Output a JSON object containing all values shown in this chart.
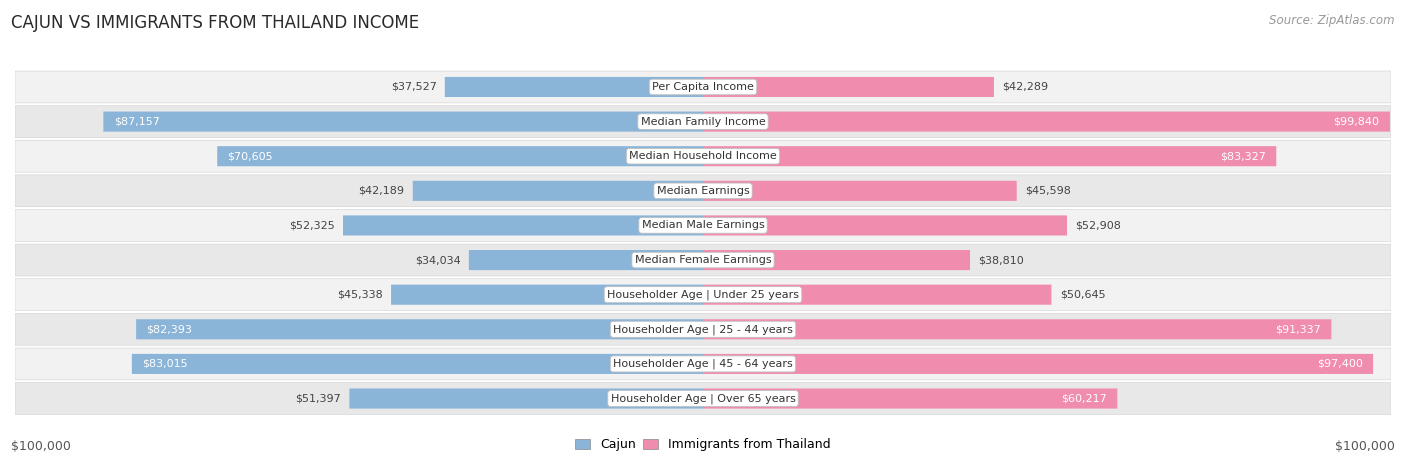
{
  "title": "CAJUN VS IMMIGRANTS FROM THAILAND INCOME",
  "source": "Source: ZipAtlas.com",
  "categories": [
    "Per Capita Income",
    "Median Family Income",
    "Median Household Income",
    "Median Earnings",
    "Median Male Earnings",
    "Median Female Earnings",
    "Householder Age | Under 25 years",
    "Householder Age | 25 - 44 years",
    "Householder Age | 45 - 64 years",
    "Householder Age | Over 65 years"
  ],
  "cajun_values": [
    37527,
    87157,
    70605,
    42189,
    52325,
    34034,
    45338,
    82393,
    83015,
    51397
  ],
  "thailand_values": [
    42289,
    99840,
    83327,
    45598,
    52908,
    38810,
    50645,
    91337,
    97400,
    60217
  ],
  "cajun_color": "#8ab4d8",
  "thailand_color": "#f08cae",
  "cajun_color_dark": "#5b8fc7",
  "thailand_color_dark": "#e85d8a",
  "row_bg_even": "#f2f2f2",
  "row_bg_odd": "#e8e8e8",
  "max_value": 100000,
  "xlabel_left": "$100,000",
  "xlabel_right": "$100,000",
  "legend_cajun": "Cajun",
  "legend_thailand": "Immigrants from Thailand",
  "title_fontsize": 12,
  "source_fontsize": 8.5,
  "label_fontsize": 8,
  "value_fontsize": 8,
  "axis_fontsize": 9,
  "inside_threshold": 60000
}
